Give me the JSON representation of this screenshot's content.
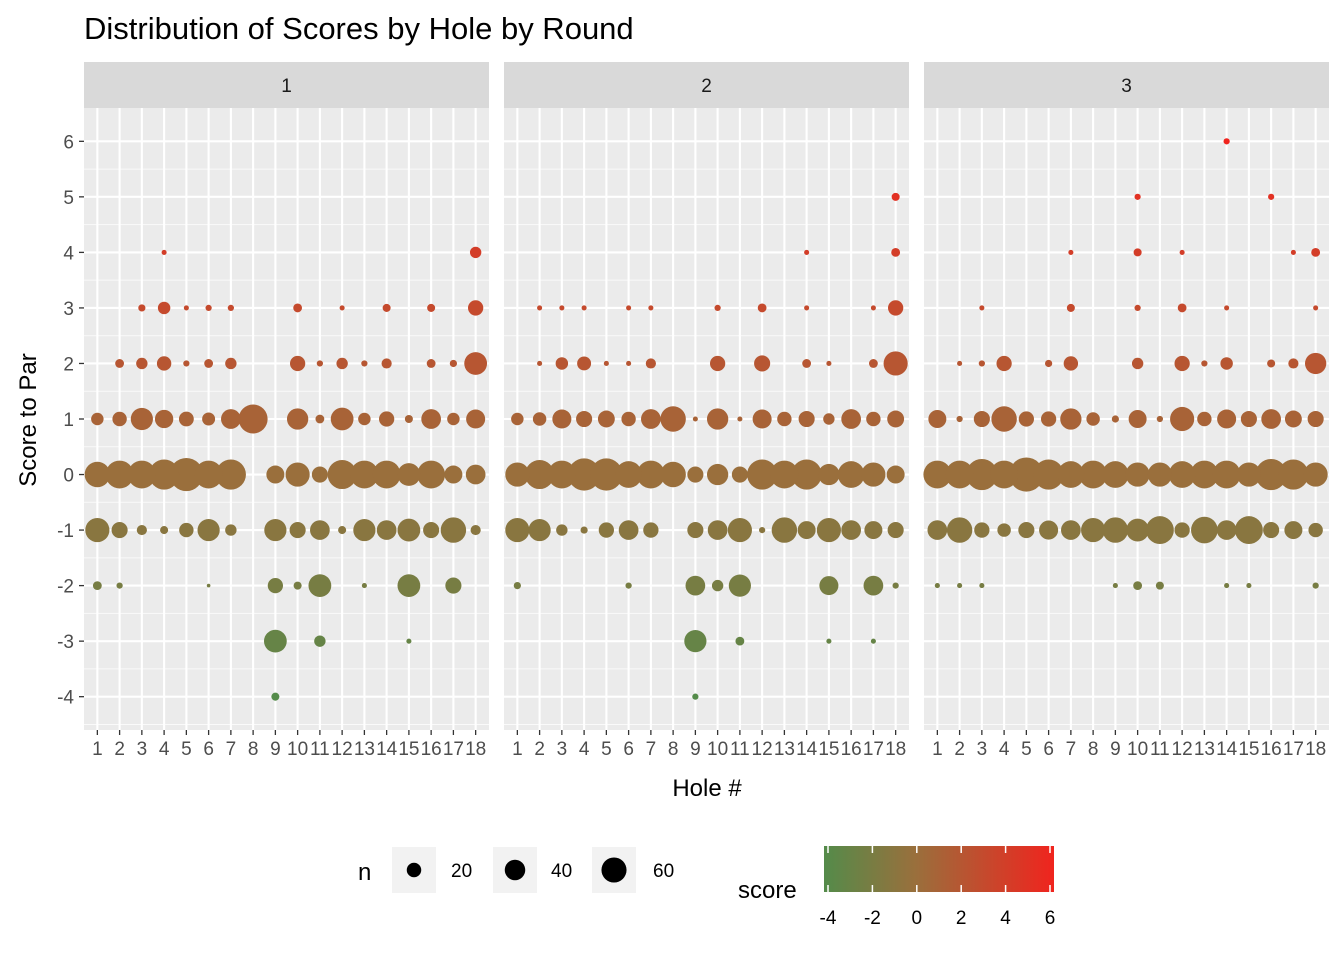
{
  "chart_data": {
    "type": "scatter",
    "title": "Distribution of Scores by Hole by Round",
    "xlabel": "Hole #",
    "ylabel": "Score to Par",
    "facets": [
      "1",
      "2",
      "3"
    ],
    "x_ticks": [
      "1",
      "2",
      "3",
      "4",
      "5",
      "6",
      "7",
      "8",
      "9",
      "10",
      "11",
      "12",
      "13",
      "14",
      "15",
      "16",
      "17",
      "18"
    ],
    "y_ticks": [
      6,
      5,
      4,
      3,
      2,
      1,
      0,
      -1,
      -2,
      -3,
      -4
    ],
    "ylim": [
      -4.6,
      6.6
    ],
    "xlim": [
      0.4,
      18.6
    ],
    "grid": true,
    "size_legend": {
      "title": "n",
      "breaks": [
        20,
        40,
        60
      ],
      "labels": [
        "20",
        "40",
        "60"
      ]
    },
    "color_legend": {
      "title": "score",
      "range": [
        -4,
        6
      ],
      "low": "#548b4a",
      "mid": "#9a6f3c",
      "high": "#f0241e",
      "ticks": [
        -4,
        -2,
        0,
        2,
        4,
        6
      ],
      "labels": [
        "-4",
        "-2",
        "0",
        "2",
        "4",
        "6"
      ]
    },
    "points": [
      [
        [
          1,
          -2,
          6
        ],
        [
          1,
          -1,
          45
        ],
        [
          1,
          0,
          50
        ],
        [
          1,
          1,
          12
        ],
        [
          2,
          -2,
          3
        ],
        [
          2,
          -1,
          20
        ],
        [
          2,
          0,
          60
        ],
        [
          2,
          1,
          16
        ],
        [
          2,
          2,
          6
        ],
        [
          3,
          -1,
          8
        ],
        [
          3,
          0,
          60
        ],
        [
          3,
          1,
          38
        ],
        [
          3,
          2,
          10
        ],
        [
          3,
          3,
          4
        ],
        [
          4,
          -1,
          5
        ],
        [
          4,
          0,
          70
        ],
        [
          4,
          1,
          26
        ],
        [
          4,
          2,
          16
        ],
        [
          4,
          3,
          12
        ],
        [
          4,
          4,
          2
        ],
        [
          5,
          -1,
          16
        ],
        [
          5,
          0,
          85
        ],
        [
          5,
          1,
          17
        ],
        [
          5,
          2,
          3
        ],
        [
          5,
          3,
          2
        ],
        [
          6,
          -2,
          1
        ],
        [
          6,
          -1,
          38
        ],
        [
          6,
          0,
          60
        ],
        [
          6,
          1,
          13
        ],
        [
          6,
          2,
          6
        ],
        [
          6,
          3,
          3
        ],
        [
          7,
          -1,
          10
        ],
        [
          7,
          0,
          70
        ],
        [
          7,
          1,
          30
        ],
        [
          7,
          2,
          10
        ],
        [
          7,
          3,
          3
        ],
        [
          8,
          1,
          65
        ],
        [
          9,
          -4,
          5
        ],
        [
          9,
          -3,
          40
        ],
        [
          9,
          -2,
          18
        ],
        [
          9,
          -1,
          38
        ],
        [
          9,
          0,
          25
        ],
        [
          10,
          -2,
          5
        ],
        [
          10,
          -1,
          20
        ],
        [
          10,
          0,
          45
        ],
        [
          10,
          1,
          35
        ],
        [
          10,
          2,
          18
        ],
        [
          10,
          3,
          6
        ],
        [
          11,
          -3,
          10
        ],
        [
          11,
          -2,
          40
        ],
        [
          11,
          -1,
          30
        ],
        [
          11,
          0,
          20
        ],
        [
          11,
          1,
          6
        ],
        [
          11,
          2,
          3
        ],
        [
          12,
          -1,
          5
        ],
        [
          12,
          0,
          65
        ],
        [
          12,
          1,
          40
        ],
        [
          12,
          2,
          10
        ],
        [
          12,
          3,
          2
        ],
        [
          13,
          -2,
          2
        ],
        [
          13,
          -1,
          38
        ],
        [
          13,
          0,
          60
        ],
        [
          13,
          1,
          12
        ],
        [
          13,
          2,
          3
        ],
        [
          14,
          -1,
          30
        ],
        [
          14,
          0,
          60
        ],
        [
          14,
          1,
          18
        ],
        [
          14,
          2,
          8
        ],
        [
          14,
          3,
          5
        ],
        [
          15,
          -3,
          2
        ],
        [
          15,
          -2,
          40
        ],
        [
          15,
          -1,
          40
        ],
        [
          15,
          0,
          40
        ],
        [
          15,
          1,
          5
        ],
        [
          16,
          -1,
          20
        ],
        [
          16,
          0,
          60
        ],
        [
          16,
          1,
          30
        ],
        [
          16,
          2,
          6
        ],
        [
          16,
          3,
          5
        ],
        [
          17,
          -2,
          20
        ],
        [
          17,
          -1,
          50
        ],
        [
          17,
          0,
          25
        ],
        [
          17,
          1,
          12
        ],
        [
          17,
          2,
          4
        ],
        [
          18,
          -1,
          8
        ],
        [
          18,
          0,
          30
        ],
        [
          18,
          1,
          28
        ],
        [
          18,
          2,
          40
        ],
        [
          18,
          3,
          18
        ],
        [
          18,
          4,
          10
        ]
      ],
      [
        [
          1,
          -2,
          4
        ],
        [
          1,
          -1,
          45
        ],
        [
          1,
          0,
          45
        ],
        [
          1,
          1,
          12
        ],
        [
          2,
          -1,
          38
        ],
        [
          2,
          0,
          65
        ],
        [
          2,
          1,
          14
        ],
        [
          2,
          2,
          2
        ],
        [
          2,
          3,
          2
        ],
        [
          3,
          -1,
          10
        ],
        [
          3,
          0,
          60
        ],
        [
          3,
          1,
          28
        ],
        [
          3,
          2,
          12
        ],
        [
          3,
          3,
          2
        ],
        [
          4,
          -1,
          4
        ],
        [
          4,
          0,
          80
        ],
        [
          4,
          1,
          20
        ],
        [
          4,
          2,
          15
        ],
        [
          4,
          3,
          2
        ],
        [
          5,
          -1,
          18
        ],
        [
          5,
          0,
          80
        ],
        [
          5,
          1,
          22
        ],
        [
          5,
          2,
          2
        ],
        [
          6,
          -2,
          3
        ],
        [
          6,
          -1,
          30
        ],
        [
          6,
          0,
          55
        ],
        [
          6,
          1,
          16
        ],
        [
          6,
          2,
          2
        ],
        [
          6,
          3,
          2
        ],
        [
          7,
          -1,
          18
        ],
        [
          7,
          0,
          60
        ],
        [
          7,
          1,
          30
        ],
        [
          7,
          2,
          8
        ],
        [
          7,
          3,
          2
        ],
        [
          8,
          0,
          50
        ],
        [
          8,
          1,
          50
        ],
        [
          9,
          -4,
          3
        ],
        [
          9,
          -3,
          38
        ],
        [
          9,
          -2,
          30
        ],
        [
          9,
          -1,
          20
        ],
        [
          9,
          0,
          20
        ],
        [
          9,
          1,
          2
        ],
        [
          10,
          -2,
          10
        ],
        [
          10,
          -1,
          30
        ],
        [
          10,
          0,
          35
        ],
        [
          10,
          1,
          35
        ],
        [
          10,
          2,
          18
        ],
        [
          10,
          3,
          3
        ],
        [
          11,
          -3,
          6
        ],
        [
          11,
          -2,
          38
        ],
        [
          11,
          -1,
          45
        ],
        [
          11,
          0,
          20
        ],
        [
          11,
          1,
          2
        ],
        [
          12,
          -1,
          3
        ],
        [
          12,
          0,
          70
        ],
        [
          12,
          1,
          28
        ],
        [
          12,
          2,
          20
        ],
        [
          12,
          3,
          6
        ],
        [
          13,
          -1,
          50
        ],
        [
          13,
          0,
          60
        ],
        [
          13,
          1,
          16
        ],
        [
          14,
          -1,
          25
        ],
        [
          14,
          0,
          70
        ],
        [
          14,
          1,
          20
        ],
        [
          14,
          2,
          6
        ],
        [
          14,
          3,
          2
        ],
        [
          14,
          4,
          2
        ],
        [
          15,
          -3,
          2
        ],
        [
          15,
          -2,
          28
        ],
        [
          15,
          -1,
          45
        ],
        [
          15,
          0,
          35
        ],
        [
          15,
          1,
          10
        ],
        [
          15,
          2,
          2
        ],
        [
          16,
          -1,
          30
        ],
        [
          16,
          0,
          55
        ],
        [
          16,
          1,
          30
        ],
        [
          17,
          -3,
          2
        ],
        [
          17,
          -2,
          30
        ],
        [
          17,
          -1,
          25
        ],
        [
          17,
          0,
          45
        ],
        [
          17,
          1,
          16
        ],
        [
          17,
          2,
          6
        ],
        [
          17,
          3,
          2
        ],
        [
          18,
          -2,
          3
        ],
        [
          18,
          -1,
          20
        ],
        [
          18,
          0,
          25
        ],
        [
          18,
          1,
          22
        ],
        [
          18,
          2,
          45
        ],
        [
          18,
          3,
          18
        ],
        [
          18,
          4,
          6
        ],
        [
          18,
          5,
          5
        ]
      ],
      [
        [
          1,
          -2,
          2
        ],
        [
          1,
          -1,
          30
        ],
        [
          1,
          0,
          60
        ],
        [
          1,
          1,
          25
        ],
        [
          2,
          -2,
          2
        ],
        [
          2,
          -1,
          50
        ],
        [
          2,
          0,
          60
        ],
        [
          2,
          1,
          3
        ],
        [
          2,
          2,
          2
        ],
        [
          3,
          -2,
          2
        ],
        [
          3,
          -1,
          18
        ],
        [
          3,
          0,
          75
        ],
        [
          3,
          1,
          20
        ],
        [
          3,
          2,
          3
        ],
        [
          3,
          3,
          2
        ],
        [
          4,
          -1,
          14
        ],
        [
          4,
          0,
          60
        ],
        [
          4,
          1,
          50
        ],
        [
          4,
          2,
          18
        ],
        [
          5,
          -1,
          20
        ],
        [
          5,
          0,
          90
        ],
        [
          5,
          1,
          18
        ],
        [
          6,
          -1,
          28
        ],
        [
          6,
          0,
          70
        ],
        [
          6,
          1,
          18
        ],
        [
          6,
          2,
          4
        ],
        [
          7,
          -1,
          30
        ],
        [
          7,
          0,
          55
        ],
        [
          7,
          1,
          35
        ],
        [
          7,
          2,
          16
        ],
        [
          7,
          3,
          5
        ],
        [
          7,
          4,
          2
        ],
        [
          8,
          -1,
          45
        ],
        [
          8,
          0,
          60
        ],
        [
          8,
          1,
          14
        ],
        [
          9,
          -2,
          2
        ],
        [
          9,
          -1,
          50
        ],
        [
          9,
          0,
          55
        ],
        [
          9,
          1,
          4
        ],
        [
          10,
          -2,
          6
        ],
        [
          10,
          -1,
          40
        ],
        [
          10,
          0,
          45
        ],
        [
          10,
          1,
          25
        ],
        [
          10,
          2,
          10
        ],
        [
          10,
          3,
          3
        ],
        [
          10,
          4,
          5
        ],
        [
          10,
          5,
          3
        ],
        [
          11,
          -2,
          5
        ],
        [
          11,
          -1,
          60
        ],
        [
          11,
          0,
          45
        ],
        [
          11,
          1,
          3
        ],
        [
          12,
          -1,
          18
        ],
        [
          12,
          0,
          55
        ],
        [
          12,
          1,
          45
        ],
        [
          12,
          2,
          18
        ],
        [
          12,
          3,
          6
        ],
        [
          12,
          4,
          2
        ],
        [
          13,
          -1,
          55
        ],
        [
          13,
          0,
          60
        ],
        [
          13,
          1,
          16
        ],
        [
          13,
          2,
          3
        ],
        [
          14,
          -2,
          2
        ],
        [
          14,
          -1,
          30
        ],
        [
          14,
          0,
          60
        ],
        [
          14,
          1,
          28
        ],
        [
          14,
          2,
          12
        ],
        [
          14,
          3,
          2
        ],
        [
          14,
          6,
          3
        ],
        [
          15,
          -2,
          2
        ],
        [
          15,
          -1,
          60
        ],
        [
          15,
          0,
          45
        ],
        [
          15,
          1,
          20
        ],
        [
          16,
          -1,
          20
        ],
        [
          16,
          0,
          75
        ],
        [
          16,
          1,
          30
        ],
        [
          16,
          2,
          5
        ],
        [
          16,
          5,
          3
        ],
        [
          17,
          -1,
          25
        ],
        [
          17,
          0,
          70
        ],
        [
          17,
          1,
          22
        ],
        [
          17,
          2,
          8
        ],
        [
          17,
          4,
          2
        ],
        [
          18,
          -2,
          3
        ],
        [
          18,
          -1,
          16
        ],
        [
          18,
          0,
          45
        ],
        [
          18,
          1,
          20
        ],
        [
          18,
          2,
          35
        ],
        [
          18,
          3,
          2
        ],
        [
          18,
          4,
          6
        ]
      ]
    ]
  }
}
